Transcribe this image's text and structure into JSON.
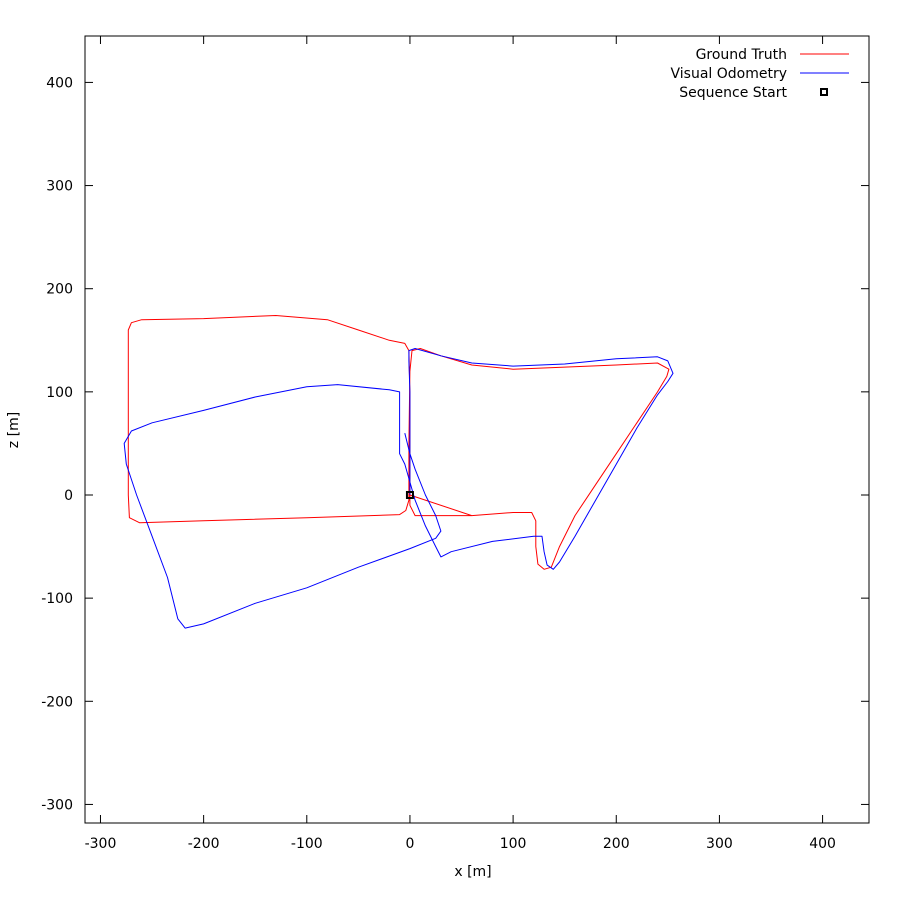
{
  "chart_data": {
    "type": "line",
    "title": "",
    "xlabel": "x [m]",
    "ylabel": "z [m]",
    "xlim": [
      -315,
      445
    ],
    "ylim": [
      -318,
      445
    ],
    "xticks": [
      -300,
      -200,
      -100,
      0,
      100,
      200,
      300,
      400
    ],
    "yticks": [
      -300,
      -200,
      -100,
      0,
      100,
      200,
      300,
      400
    ],
    "grid": false,
    "legend_position": "top-right",
    "series": [
      {
        "name": "Ground Truth",
        "color": "#ff0000",
        "points": [
          [
            0,
            0
          ],
          [
            0,
            30
          ],
          [
            0,
            60
          ],
          [
            0,
            100
          ],
          [
            -1,
            140
          ],
          [
            -5,
            147
          ],
          [
            -20,
            150
          ],
          [
            -50,
            160
          ],
          [
            -80,
            170
          ],
          [
            -130,
            174
          ],
          [
            -200,
            171
          ],
          [
            -260,
            170
          ],
          [
            -270,
            167
          ],
          [
            -273,
            160
          ],
          [
            -273,
            120
          ],
          [
            -273,
            60
          ],
          [
            -273,
            0
          ],
          [
            -272,
            -22
          ],
          [
            -262,
            -27
          ],
          [
            -200,
            -25
          ],
          [
            -100,
            -22
          ],
          [
            -10,
            -19
          ],
          [
            -4,
            -15
          ],
          [
            -1,
            -5
          ],
          [
            -1,
            50
          ],
          [
            0,
            120
          ],
          [
            2,
            140
          ],
          [
            10,
            142
          ],
          [
            30,
            135
          ],
          [
            60,
            126
          ],
          [
            100,
            122
          ],
          [
            150,
            124
          ],
          [
            200,
            126
          ],
          [
            240,
            128
          ],
          [
            251,
            122
          ],
          [
            249,
            115
          ],
          [
            240,
            100
          ],
          [
            220,
            70
          ],
          [
            200,
            40
          ],
          [
            180,
            10
          ],
          [
            160,
            -20
          ],
          [
            145,
            -50
          ],
          [
            137,
            -70
          ],
          [
            130,
            -72
          ],
          [
            124,
            -67
          ],
          [
            122,
            -50
          ],
          [
            122,
            -25
          ],
          [
            118,
            -17
          ],
          [
            100,
            -17
          ],
          [
            60,
            -20
          ],
          [
            20,
            -20
          ],
          [
            5,
            -20
          ],
          [
            0,
            -10
          ],
          [
            0,
            0
          ],
          [
            60,
            -20
          ]
        ]
      },
      {
        "name": "Visual Odometry",
        "color": "#0000ff",
        "points": [
          [
            0,
            0
          ],
          [
            0,
            40
          ],
          [
            0,
            100
          ],
          [
            -1,
            130
          ],
          [
            -1,
            140
          ],
          [
            5,
            142
          ],
          [
            30,
            135
          ],
          [
            60,
            128
          ],
          [
            100,
            125
          ],
          [
            150,
            127
          ],
          [
            200,
            132
          ],
          [
            240,
            134
          ],
          [
            250,
            130
          ],
          [
            255,
            118
          ],
          [
            250,
            110
          ],
          [
            240,
            97
          ],
          [
            220,
            65
          ],
          [
            200,
            30
          ],
          [
            180,
            -5
          ],
          [
            160,
            -40
          ],
          [
            145,
            -65
          ],
          [
            139,
            -72
          ],
          [
            133,
            -68
          ],
          [
            130,
            -55
          ],
          [
            128,
            -40
          ],
          [
            120,
            -40
          ],
          [
            80,
            -45
          ],
          [
            40,
            -55
          ],
          [
            30,
            -60
          ],
          [
            25,
            -50
          ],
          [
            15,
            -30
          ],
          [
            5,
            -5
          ],
          [
            -5,
            30
          ],
          [
            -10,
            40
          ],
          [
            -10,
            70
          ],
          [
            -10,
            100
          ],
          [
            -20,
            102
          ],
          [
            -70,
            107
          ],
          [
            -100,
            105
          ],
          [
            -150,
            95
          ],
          [
            -200,
            82
          ],
          [
            -250,
            70
          ],
          [
            -270,
            62
          ],
          [
            -277,
            50
          ],
          [
            -275,
            30
          ],
          [
            -265,
            0
          ],
          [
            -250,
            -40
          ],
          [
            -235,
            -80
          ],
          [
            -225,
            -120
          ],
          [
            -218,
            -129
          ],
          [
            -200,
            -125
          ],
          [
            -150,
            -105
          ],
          [
            -100,
            -90
          ],
          [
            -50,
            -70
          ],
          [
            0,
            -52
          ],
          [
            25,
            -42
          ],
          [
            30,
            -35
          ],
          [
            25,
            -20
          ],
          [
            15,
            0
          ],
          [
            5,
            25
          ],
          [
            0,
            40
          ],
          [
            -5,
            60
          ]
        ]
      },
      {
        "name": "Sequence Start",
        "color": "#000000",
        "points": [
          [
            0,
            0
          ]
        ]
      }
    ]
  }
}
